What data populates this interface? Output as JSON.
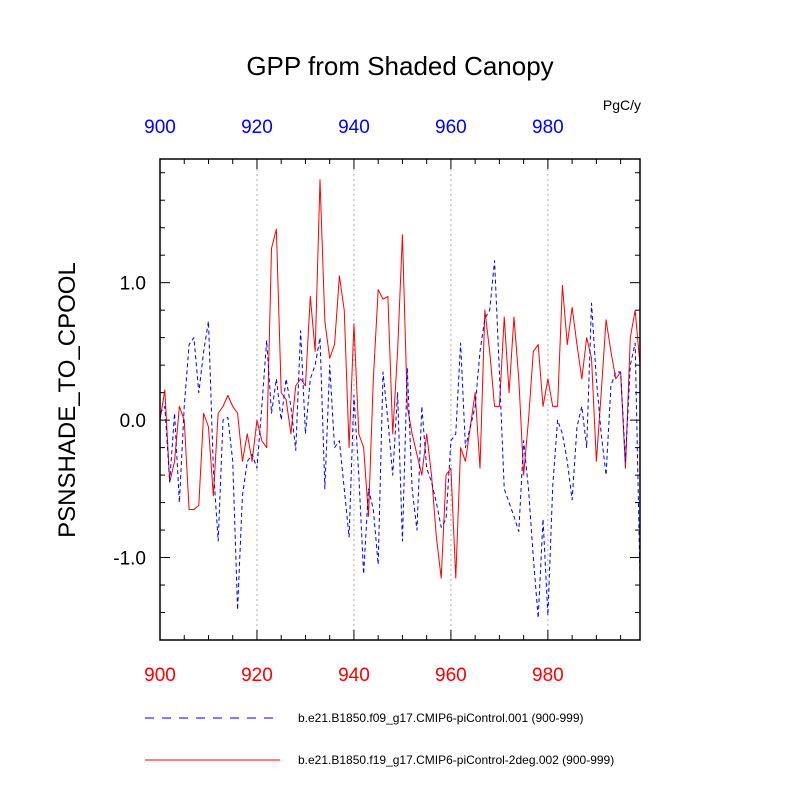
{
  "chart_data": {
    "type": "line",
    "title": "GPP from Shaded Canopy",
    "units": "PgC/y",
    "ylabel": "PSNSHADE_TO_CPOOL",
    "xlabel": "",
    "xlim": [
      900,
      999
    ],
    "ylim": [
      -1.6,
      1.9
    ],
    "x_ticks": [
      900,
      920,
      940,
      960,
      980
    ],
    "x_tick_labels": [
      "900",
      "920",
      "940",
      "960",
      "980"
    ],
    "y_ticks": [
      -1.0,
      0.0,
      1.0
    ],
    "y_tick_labels": [
      "-1.0",
      "0.0",
      "1.0"
    ],
    "colors": {
      "top_axis": "#0000ff",
      "bottom_axis": "#ff0000"
    },
    "series": [
      {
        "name": "b.e21.B1850.f09_g17.CMIP6-piControl.001 (900-999)",
        "color": "#0000ff",
        "style": "dashed",
        "x": [
          900,
          901,
          902,
          903,
          904,
          905,
          906,
          907,
          908,
          909,
          910,
          911,
          912,
          913,
          914,
          915,
          916,
          917,
          918,
          919,
          920,
          921,
          922,
          923,
          924,
          925,
          926,
          927,
          928,
          929,
          930,
          931,
          932,
          933,
          934,
          935,
          936,
          937,
          938,
          939,
          940,
          941,
          942,
          943,
          944,
          945,
          946,
          947,
          948,
          949,
          950,
          951,
          952,
          953,
          954,
          955,
          956,
          957,
          958,
          959,
          960,
          961,
          962,
          963,
          964,
          965,
          966,
          967,
          968,
          969,
          970,
          971,
          972,
          973,
          974,
          975,
          976,
          977,
          978,
          979,
          980,
          981,
          982,
          983,
          984,
          985,
          986,
          987,
          988,
          989,
          990,
          991,
          992,
          993,
          994,
          995,
          996,
          997,
          998,
          999
        ],
        "values": [
          0.05,
          0.1,
          -0.45,
          0.05,
          -0.6,
          0.1,
          0.55,
          0.6,
          0.2,
          0.5,
          0.72,
          -0.35,
          -0.88,
          0.0,
          0.02,
          -0.3,
          -1.38,
          -0.55,
          -0.3,
          -0.25,
          -0.35,
          0.1,
          0.58,
          0.05,
          0.3,
          0.0,
          0.3,
          0.1,
          -0.22,
          0.65,
          -0.1,
          0.3,
          0.4,
          0.6,
          -0.5,
          0.4,
          -0.2,
          -0.15,
          -0.5,
          -0.85,
          0.18,
          -0.4,
          -1.12,
          -0.5,
          -0.65,
          -1.05,
          0.35,
          0.0,
          -0.4,
          0.2,
          -0.88,
          0.38,
          -0.5,
          -0.8,
          0.1,
          -0.35,
          -0.45,
          -0.6,
          -0.78,
          -0.72,
          -0.15,
          -0.1,
          0.56,
          -0.2,
          -0.05,
          0.1,
          0.5,
          0.74,
          0.8,
          1.16,
          0.35,
          -0.5,
          -0.6,
          -0.7,
          -0.81,
          -0.15,
          -0.5,
          -1.0,
          -1.44,
          -0.72,
          -1.42,
          -0.48,
          0.0,
          -0.1,
          -0.3,
          -0.58,
          -0.05,
          0.1,
          -0.2,
          0.85,
          0.3,
          -0.1,
          -0.4,
          0.25,
          0.35,
          0.35,
          -0.3,
          0.4,
          0.56,
          -1.15
        ]
      },
      {
        "name": "b.e21.B1850.f19_g17.CMIP6-piControl-2deg.002 (900-999)",
        "color": "#ff0000",
        "style": "solid",
        "x": [
          900,
          901,
          902,
          903,
          904,
          905,
          906,
          907,
          908,
          909,
          910,
          911,
          912,
          913,
          914,
          915,
          916,
          917,
          918,
          919,
          920,
          921,
          922,
          923,
          924,
          925,
          926,
          927,
          928,
          929,
          930,
          931,
          932,
          933,
          934,
          935,
          936,
          937,
          938,
          939,
          940,
          941,
          942,
          943,
          944,
          945,
          946,
          947,
          948,
          949,
          950,
          951,
          952,
          953,
          954,
          955,
          956,
          957,
          958,
          959,
          960,
          961,
          962,
          963,
          964,
          965,
          966,
          967,
          968,
          969,
          970,
          971,
          972,
          973,
          974,
          975,
          976,
          977,
          978,
          979,
          980,
          981,
          982,
          983,
          984,
          985,
          986,
          987,
          988,
          989,
          990,
          991,
          992,
          993,
          994,
          995,
          996,
          997,
          998,
          999
        ],
        "values": [
          0.0,
          0.22,
          -0.45,
          -0.3,
          0.1,
          0.0,
          -0.65,
          -0.65,
          -0.62,
          0.05,
          -0.05,
          -0.55,
          0.05,
          0.1,
          0.18,
          0.1,
          0.05,
          -0.3,
          -0.1,
          -0.3,
          0.0,
          -0.15,
          -0.2,
          1.25,
          1.39,
          0.2,
          0.15,
          -0.1,
          0.25,
          0.3,
          0.25,
          0.9,
          0.5,
          1.75,
          0.72,
          0.45,
          0.55,
          1.05,
          0.8,
          -0.2,
          0.7,
          -0.1,
          -0.2,
          -0.7,
          0.3,
          0.95,
          0.88,
          0.9,
          -0.1,
          0.5,
          1.35,
          0.1,
          -0.1,
          -0.25,
          -0.4,
          -0.1,
          -0.4,
          -0.85,
          -1.15,
          -0.4,
          -0.35,
          -1.15,
          -0.2,
          -0.3,
          -0.05,
          0.2,
          -0.35,
          0.8,
          0.5,
          0.1,
          0.1,
          0.75,
          0.2,
          0.75,
          0.3,
          -0.4,
          0.0,
          0.5,
          0.55,
          0.1,
          0.3,
          0.1,
          0.1,
          0.98,
          0.55,
          0.82,
          0.55,
          0.3,
          0.6,
          0.45,
          -0.3,
          0.2,
          0.73,
          0.5,
          0.3,
          0.35,
          -0.35,
          0.6,
          0.8,
          0.4
        ]
      }
    ]
  }
}
